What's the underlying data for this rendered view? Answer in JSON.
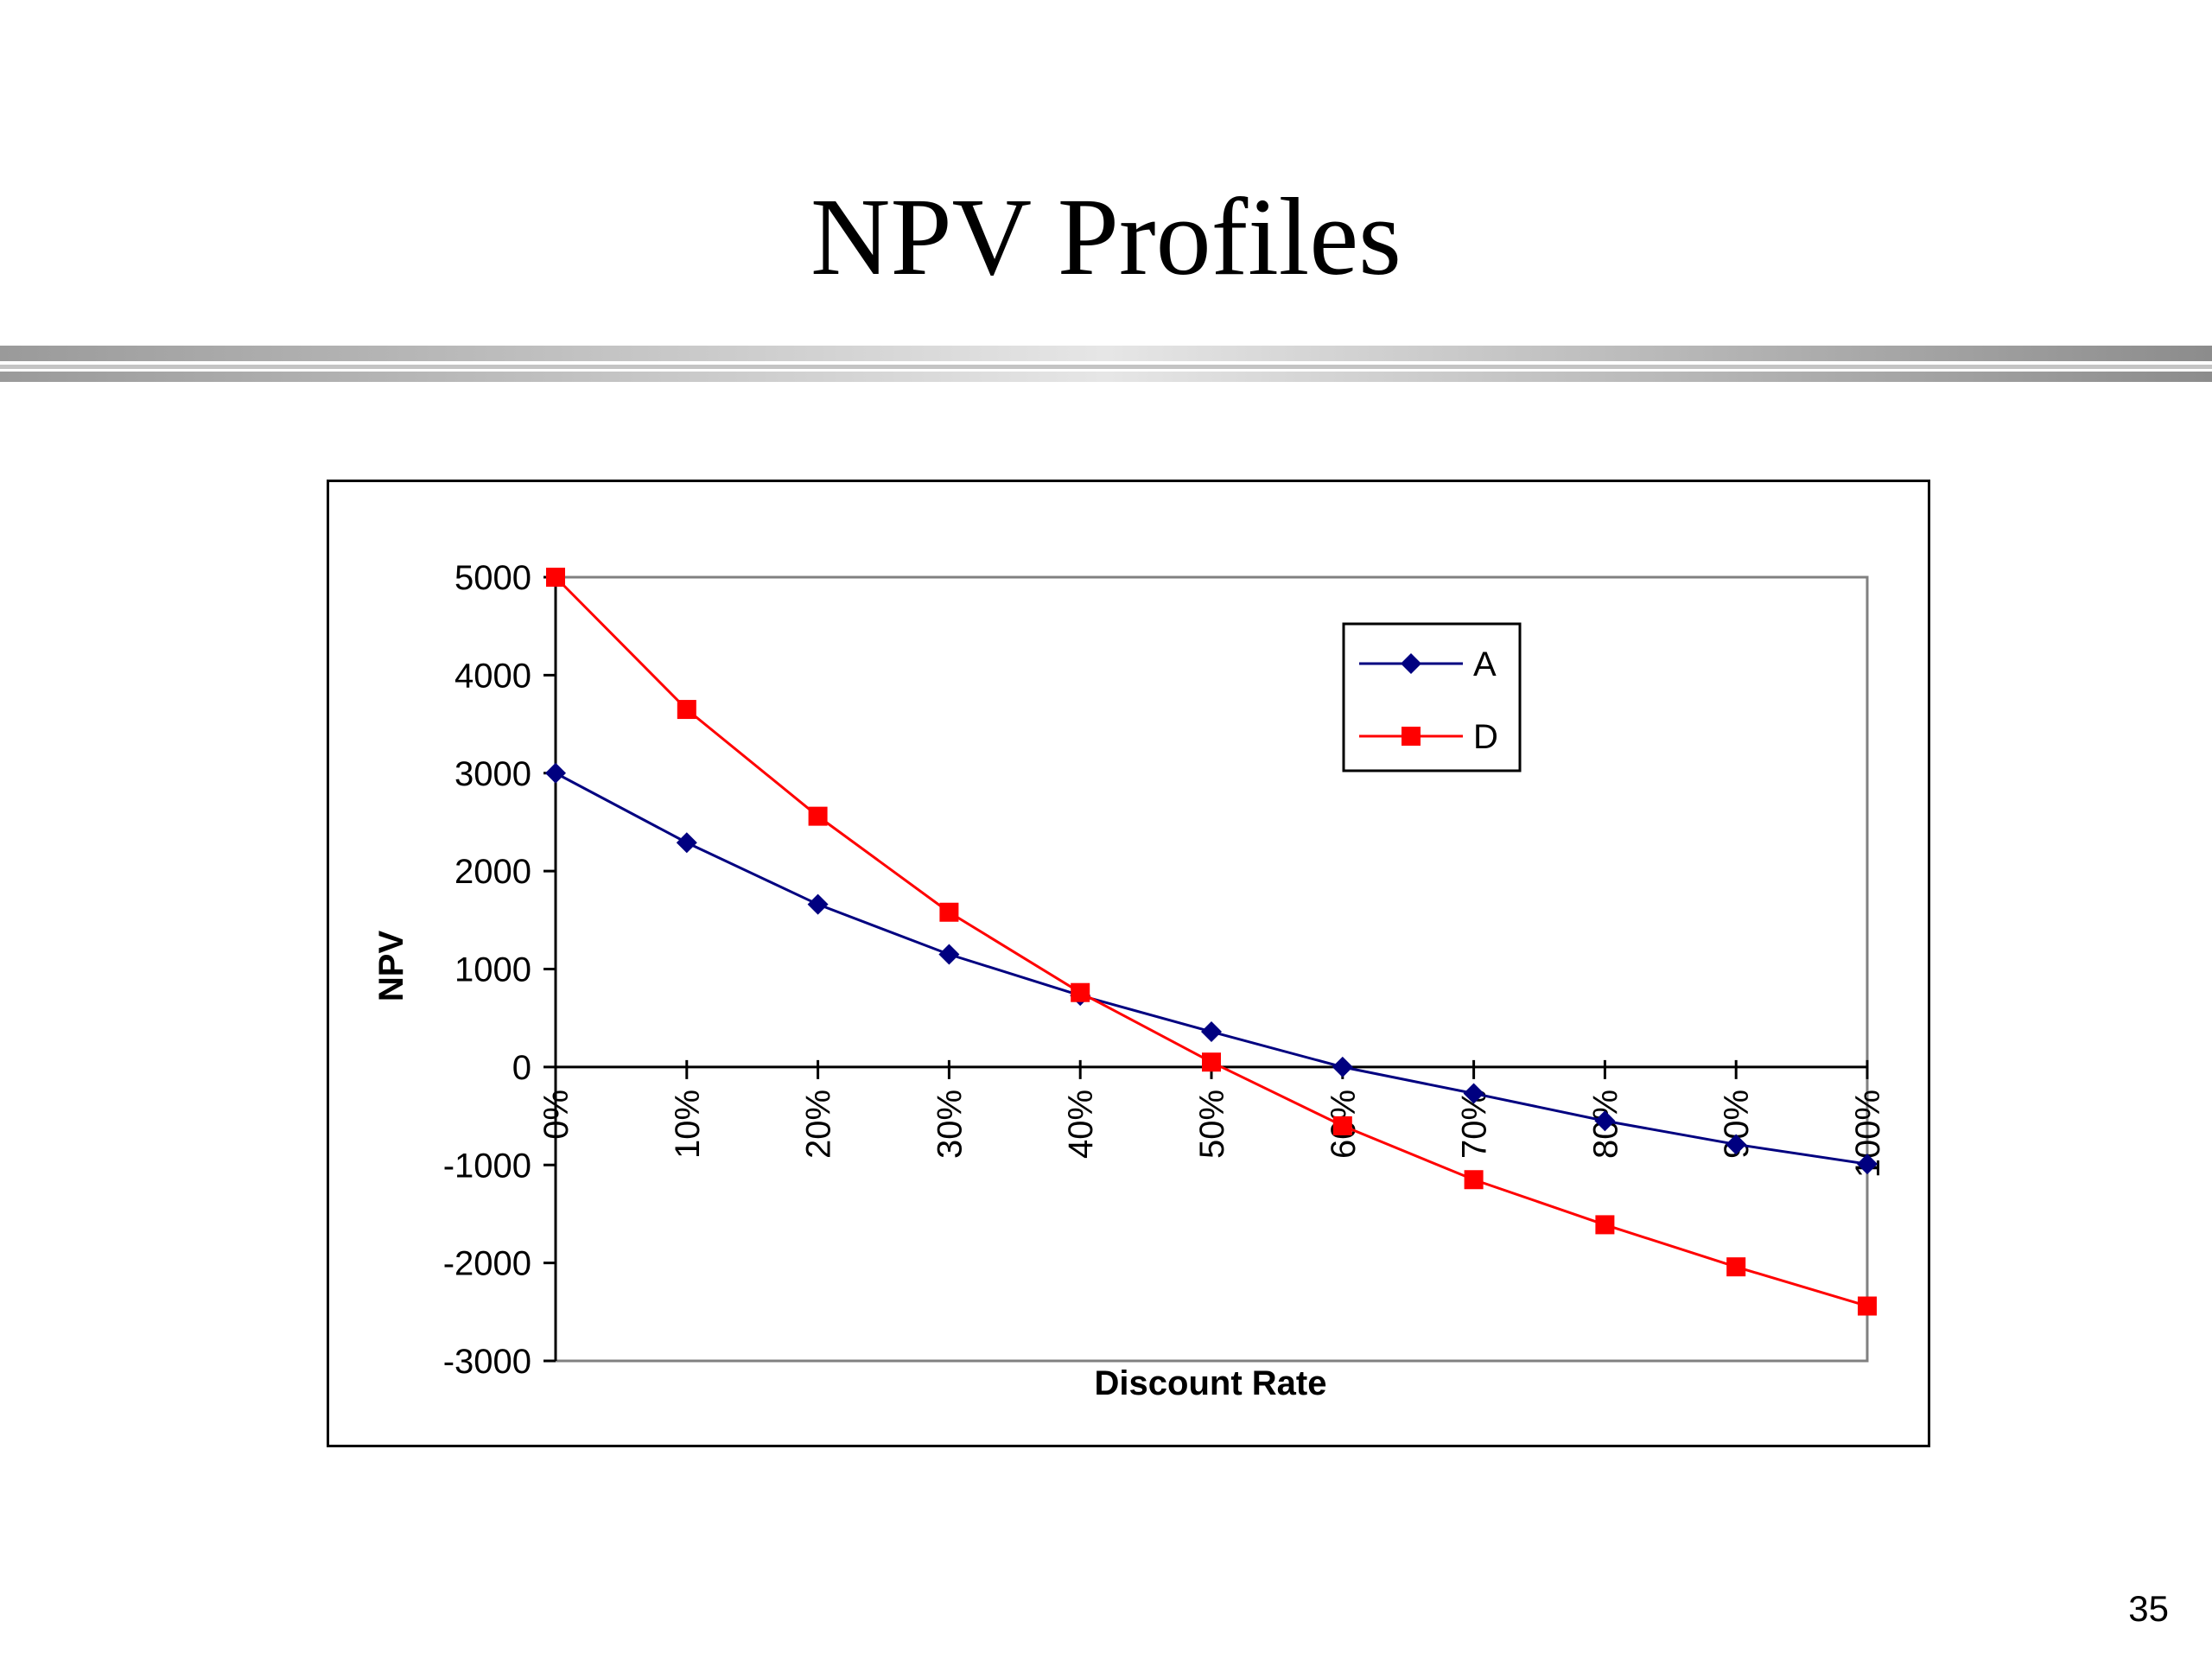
{
  "slide": {
    "title": "NPV Profiles",
    "page_number": "35"
  },
  "colors": {
    "series_a": "#000080",
    "series_d": "#ff0000",
    "axis": "#000000",
    "plot_border": "#808080"
  },
  "chart_data": {
    "type": "line",
    "xlabel": "Discount Rate",
    "ylabel": "NPV",
    "categories": [
      "0%",
      "10%",
      "20%",
      "30%",
      "40%",
      "50%",
      "60%",
      "70%",
      "80%",
      "90%",
      "100%"
    ],
    "ylim": [
      -3000,
      5000
    ],
    "yticks": [
      5000,
      4000,
      3000,
      2000,
      1000,
      0,
      -1000,
      -2000,
      -3000
    ],
    "grid": false,
    "legend_position": "top-right",
    "series": [
      {
        "name": "A",
        "marker": "diamond",
        "values": [
          3000,
          2290,
          1660,
          1150,
          730,
          360,
          0,
          -270,
          -550,
          -790,
          -990
        ]
      },
      {
        "name": "D",
        "marker": "square",
        "values": [
          5000,
          3650,
          2560,
          1580,
          760,
          50,
          -600,
          -1150,
          -1610,
          -2040,
          -2440
        ]
      }
    ]
  }
}
